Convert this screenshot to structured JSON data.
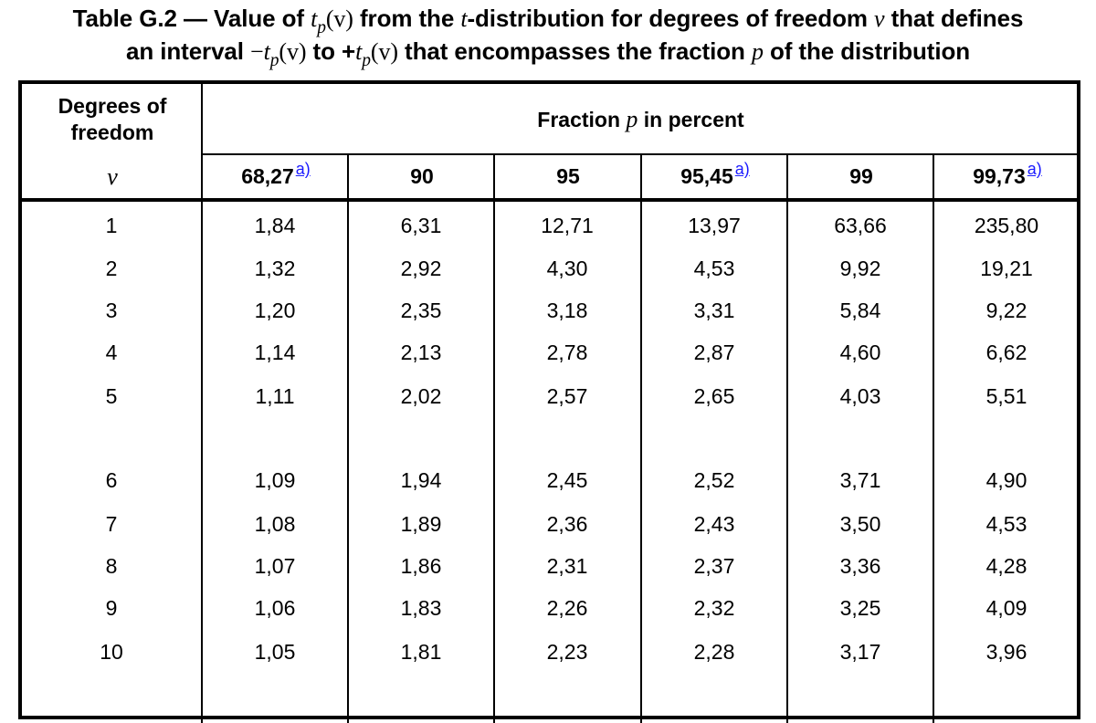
{
  "title": {
    "line1_prefix": "Table G.2 — Value of ",
    "line1_t": "t",
    "line1_p": "p",
    "line1_v": "(v)",
    "line1_mid": " from the ",
    "line1_t2": "t",
    "line1_suffix": "-distribution for degrees of freedom ",
    "line1_nu": "v",
    "line1_end": " that defines",
    "line2_prefix": "an interval ",
    "line2_minus": "−",
    "line2_t": "t",
    "line2_p": "p",
    "line2_v": "(v)",
    "line2_to": " to +",
    "line2_t2": "t",
    "line2_p2": "p",
    "line2_v2": "(v)",
    "line2_mid": " that encompasses the fraction ",
    "line2_pvar": "p",
    "line2_end": " of the distribution"
  },
  "table": {
    "dof_header_line1": "Degrees of",
    "dof_header_line2": "freedom",
    "dof_symbol": "v",
    "fraction_header_prefix": "Fraction ",
    "fraction_header_p": "p",
    "fraction_header_suffix": " in percent",
    "footnote_marker": "a)",
    "link_color": "#1a1aff",
    "columns": [
      {
        "label": "68,27",
        "footnote": true
      },
      {
        "label": "90",
        "footnote": false
      },
      {
        "label": "95",
        "footnote": false
      },
      {
        "label": "95,45",
        "footnote": true
      },
      {
        "label": "99",
        "footnote": false
      },
      {
        "label": "99,73",
        "footnote": true
      }
    ],
    "rows": [
      {
        "dof": "1",
        "values": [
          "1,84",
          "6,31",
          "12,71",
          "13,97",
          "63,66",
          "235,80"
        ]
      },
      {
        "dof": "2",
        "values": [
          "1,32",
          "2,92",
          "4,30",
          "4,53",
          "9,92",
          "19,21"
        ]
      },
      {
        "dof": "3",
        "values": [
          "1,20",
          "2,35",
          "3,18",
          "3,31",
          "5,84",
          "9,22"
        ]
      },
      {
        "dof": "4",
        "values": [
          "1,14",
          "2,13",
          "2,78",
          "2,87",
          "4,60",
          "6,62"
        ]
      },
      {
        "dof": "5",
        "values": [
          "1,11",
          "2,02",
          "2,57",
          "2,65",
          "4,03",
          "5,51"
        ]
      },
      {
        "dof": "6",
        "values": [
          "1,09",
          "1,94",
          "2,45",
          "2,52",
          "3,71",
          "4,90"
        ]
      },
      {
        "dof": "7",
        "values": [
          "1,08",
          "1,89",
          "2,36",
          "2,43",
          "3,50",
          "4,53"
        ]
      },
      {
        "dof": "8",
        "values": [
          "1,07",
          "1,86",
          "2,31",
          "2,37",
          "3,36",
          "4,28"
        ]
      },
      {
        "dof": "9",
        "values": [
          "1,06",
          "1,83",
          "2,26",
          "2,32",
          "3,25",
          "4,09"
        ]
      },
      {
        "dof": "10",
        "values": [
          "1,05",
          "1,81",
          "2,23",
          "2,28",
          "3,17",
          "3,96"
        ]
      }
    ]
  }
}
